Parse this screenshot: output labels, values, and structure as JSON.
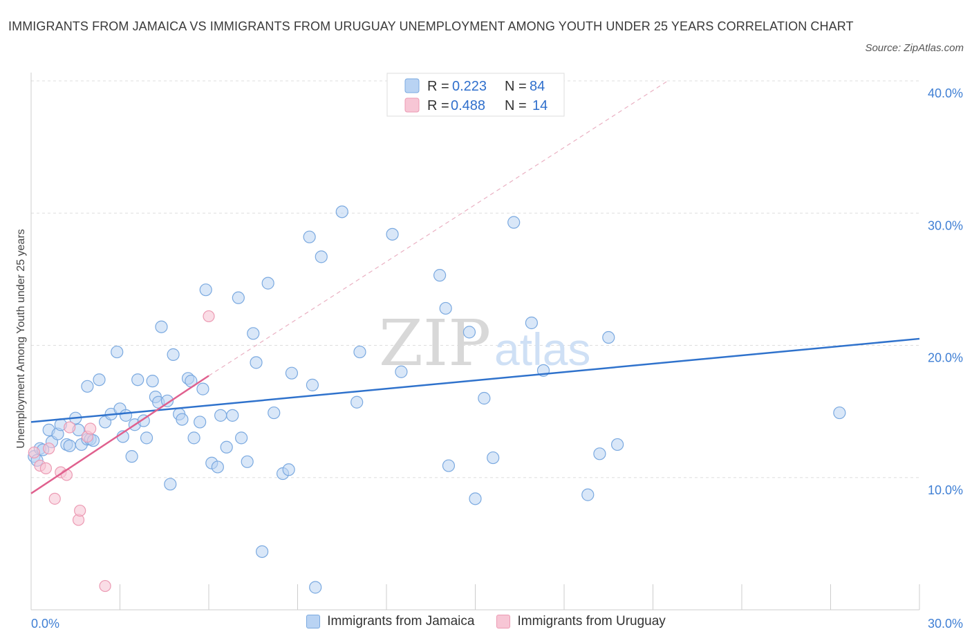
{
  "header": {
    "title": "IMMIGRANTS FROM JAMAICA VS IMMIGRANTS FROM URUGUAY UNEMPLOYMENT AMONG YOUTH UNDER 25 YEARS CORRELATION CHART",
    "source": "Source: ZipAtlas.com"
  },
  "watermark": {
    "zip": "ZIP",
    "atlas": "atlas"
  },
  "legend": {
    "r_label": "R =",
    "n_label": "N =",
    "rows": [
      {
        "r": "0.223",
        "n": "84"
      },
      {
        "r": "0.488",
        "n": "14"
      }
    ]
  },
  "colors": {
    "jamaica_fill": "#b9d3f3",
    "jamaica_stroke": "#7aa9e0",
    "jamaica_line": "#2f72cc",
    "uruguay_fill": "#f7c6d5",
    "uruguay_stroke": "#ec9ab3",
    "uruguay_line": "#e0608e",
    "grid": "#dddddd",
    "tick_text": "#3f7fd4"
  },
  "chart_data": {
    "type": "scatter",
    "title": "IMMIGRANTS FROM JAMAICA VS IMMIGRANTS FROM URUGUAY UNEMPLOYMENT AMONG YOUTH UNDER 25 YEARS CORRELATION CHART",
    "xlabel": "",
    "ylabel": "Unemployment Among Youth under 25 years",
    "xlim": [
      0,
      30
    ],
    "ylim": [
      0,
      40
    ],
    "x_tick_labels": [
      "0.0%",
      "30.0%"
    ],
    "y_ticks": [
      10,
      20,
      30,
      40
    ],
    "y_tick_labels": [
      "10.0%",
      "20.0%",
      "30.0%",
      "40.0%"
    ],
    "grid": true,
    "legend_position": "bottom",
    "series": [
      {
        "name": "Immigrants from Jamaica",
        "R": 0.223,
        "N": 84,
        "trend": {
          "x0": 0,
          "y0": 14.2,
          "x1": 30,
          "y1": 20.5
        },
        "points": [
          [
            0.1,
            11.6
          ],
          [
            0.3,
            12.2
          ],
          [
            0.2,
            11.3
          ],
          [
            0.4,
            12.1
          ],
          [
            0.6,
            13.6
          ],
          [
            0.7,
            12.7
          ],
          [
            0.9,
            13.3
          ],
          [
            1.0,
            14.0
          ],
          [
            1.2,
            12.5
          ],
          [
            1.3,
            12.4
          ],
          [
            1.5,
            14.5
          ],
          [
            1.6,
            13.6
          ],
          [
            1.7,
            12.5
          ],
          [
            1.9,
            12.9
          ],
          [
            2.0,
            12.9
          ],
          [
            2.1,
            12.8
          ],
          [
            1.9,
            16.9
          ],
          [
            2.3,
            17.4
          ],
          [
            2.5,
            14.2
          ],
          [
            2.7,
            14.8
          ],
          [
            2.9,
            19.5
          ],
          [
            3.0,
            15.2
          ],
          [
            3.1,
            13.1
          ],
          [
            3.2,
            14.7
          ],
          [
            3.4,
            11.6
          ],
          [
            3.5,
            14.0
          ],
          [
            3.6,
            17.4
          ],
          [
            3.8,
            14.3
          ],
          [
            3.9,
            13.0
          ],
          [
            4.1,
            17.3
          ],
          [
            4.2,
            16.1
          ],
          [
            4.3,
            15.7
          ],
          [
            4.4,
            21.4
          ],
          [
            4.6,
            15.8
          ],
          [
            4.7,
            9.5
          ],
          [
            4.8,
            19.3
          ],
          [
            5.0,
            14.8
          ],
          [
            5.1,
            14.4
          ],
          [
            5.3,
            17.5
          ],
          [
            5.4,
            17.3
          ],
          [
            5.5,
            13.0
          ],
          [
            5.7,
            14.2
          ],
          [
            5.8,
            16.7
          ],
          [
            5.9,
            24.2
          ],
          [
            6.1,
            11.1
          ],
          [
            6.3,
            10.8
          ],
          [
            6.4,
            14.7
          ],
          [
            6.6,
            12.3
          ],
          [
            6.8,
            14.7
          ],
          [
            7.0,
            23.6
          ],
          [
            7.1,
            13.0
          ],
          [
            7.3,
            11.2
          ],
          [
            7.5,
            20.9
          ],
          [
            7.6,
            18.7
          ],
          [
            7.8,
            4.4
          ],
          [
            8.0,
            24.7
          ],
          [
            8.2,
            14.9
          ],
          [
            8.5,
            10.3
          ],
          [
            8.7,
            10.6
          ],
          [
            8.8,
            17.9
          ],
          [
            9.4,
            28.2
          ],
          [
            9.5,
            17.0
          ],
          [
            9.6,
            1.7
          ],
          [
            9.8,
            26.7
          ],
          [
            10.5,
            30.1
          ],
          [
            11.0,
            15.7
          ],
          [
            11.1,
            19.5
          ],
          [
            12.2,
            28.4
          ],
          [
            12.5,
            18.0
          ],
          [
            13.8,
            25.3
          ],
          [
            14.0,
            22.8
          ],
          [
            14.1,
            10.9
          ],
          [
            14.8,
            21.0
          ],
          [
            15.0,
            8.4
          ],
          [
            15.3,
            16.0
          ],
          [
            15.6,
            11.5
          ],
          [
            16.3,
            29.3
          ],
          [
            16.9,
            21.7
          ],
          [
            17.3,
            18.1
          ],
          [
            18.8,
            8.7
          ],
          [
            19.2,
            11.8
          ],
          [
            19.5,
            20.6
          ],
          [
            19.8,
            12.5
          ],
          [
            27.3,
            14.9
          ]
        ]
      },
      {
        "name": "Immigrants from Uruguay",
        "R": 0.488,
        "N": 14,
        "trend": {
          "x0": 0,
          "y0": 8.8,
          "x1": 6.0,
          "y1": 17.7
        },
        "trend_extension": {
          "x0": 6.0,
          "y0": 17.7,
          "x1": 21.5,
          "y1": 40.0
        },
        "points": [
          [
            0.1,
            11.9
          ],
          [
            0.3,
            10.9
          ],
          [
            0.5,
            10.7
          ],
          [
            0.6,
            12.2
          ],
          [
            0.8,
            8.4
          ],
          [
            1.0,
            10.4
          ],
          [
            1.2,
            10.2
          ],
          [
            1.3,
            13.8
          ],
          [
            1.6,
            6.8
          ],
          [
            1.65,
            7.5
          ],
          [
            1.9,
            13.1
          ],
          [
            2.0,
            13.7
          ],
          [
            2.5,
            1.8
          ],
          [
            6.0,
            22.2
          ]
        ]
      }
    ]
  },
  "bottom_legend": {
    "jamaica_label": "Immigrants from Jamaica",
    "uruguay_label": "Immigrants from Uruguay"
  }
}
